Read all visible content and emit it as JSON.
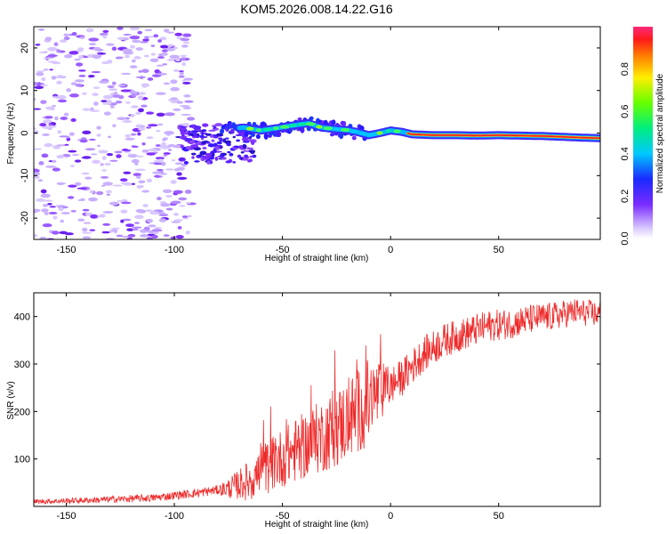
{
  "title": "KOM5.2026.008.14.22.G16",
  "chart_data": [
    {
      "type": "heatmap",
      "name": "spectrogram",
      "xlabel": "Height of straight line (km)",
      "ylabel": "Frequency (Hz)",
      "xlim": [
        -165,
        97
      ],
      "ylim": [
        -25,
        25
      ],
      "xticks": [
        -150,
        -100,
        -50,
        0,
        50
      ],
      "yticks": [
        -20,
        -10,
        0,
        10,
        20
      ],
      "colorbar": {
        "label": "Normalized spectral amplitude",
        "range": [
          0,
          1
        ],
        "ticks": [
          "0.0",
          "0.2",
          "0.4",
          "0.6",
          "0.8"
        ]
      },
      "ridge": {
        "description": "dominant frequency ridge (Hz) vs height (km)",
        "x": [
          -75,
          -68,
          -60,
          -52,
          -45,
          -38,
          -32,
          -25,
          -20,
          -15,
          -10,
          -5,
          0,
          5,
          10,
          20,
          30,
          40,
          50,
          60,
          70,
          80,
          90,
          97
        ],
        "y": [
          1.0,
          1.3,
          0.6,
          1.2,
          1.8,
          2.3,
          1.3,
          0.9,
          0.7,
          0.2,
          -0.5,
          0.0,
          0.6,
          0.3,
          -0.3,
          -0.5,
          -0.5,
          -0.6,
          -0.5,
          -0.6,
          -0.7,
          -0.9,
          -1.1,
          -1.2
        ]
      }
    },
    {
      "type": "line",
      "name": "snr",
      "xlabel": "Height of straight line (km)",
      "ylabel": "SNR (v/v)",
      "xlim": [
        -165,
        97
      ],
      "ylim": [
        0,
        450
      ],
      "xticks": [
        -150,
        -100,
        -50,
        0,
        50
      ],
      "yticks": [
        100,
        200,
        300,
        400
      ],
      "color": "#ee2a2a",
      "trend": {
        "x": [
          -165,
          -140,
          -110,
          -90,
          -75,
          -65,
          -55,
          -45,
          -35,
          -25,
          -15,
          -5,
          5,
          15,
          25,
          35,
          45,
          55,
          65,
          75,
          85,
          97
        ],
        "y": [
          10,
          13,
          18,
          28,
          38,
          55,
          90,
          115,
          140,
          165,
          200,
          240,
          270,
          320,
          350,
          365,
          380,
          385,
          395,
          400,
          410,
          405
        ]
      },
      "noise": {
        "x": [
          -165,
          -80,
          -60,
          -10,
          0,
          30,
          97
        ],
        "amp": [
          5,
          10,
          55,
          95,
          40,
          35,
          28
        ]
      }
    }
  ]
}
